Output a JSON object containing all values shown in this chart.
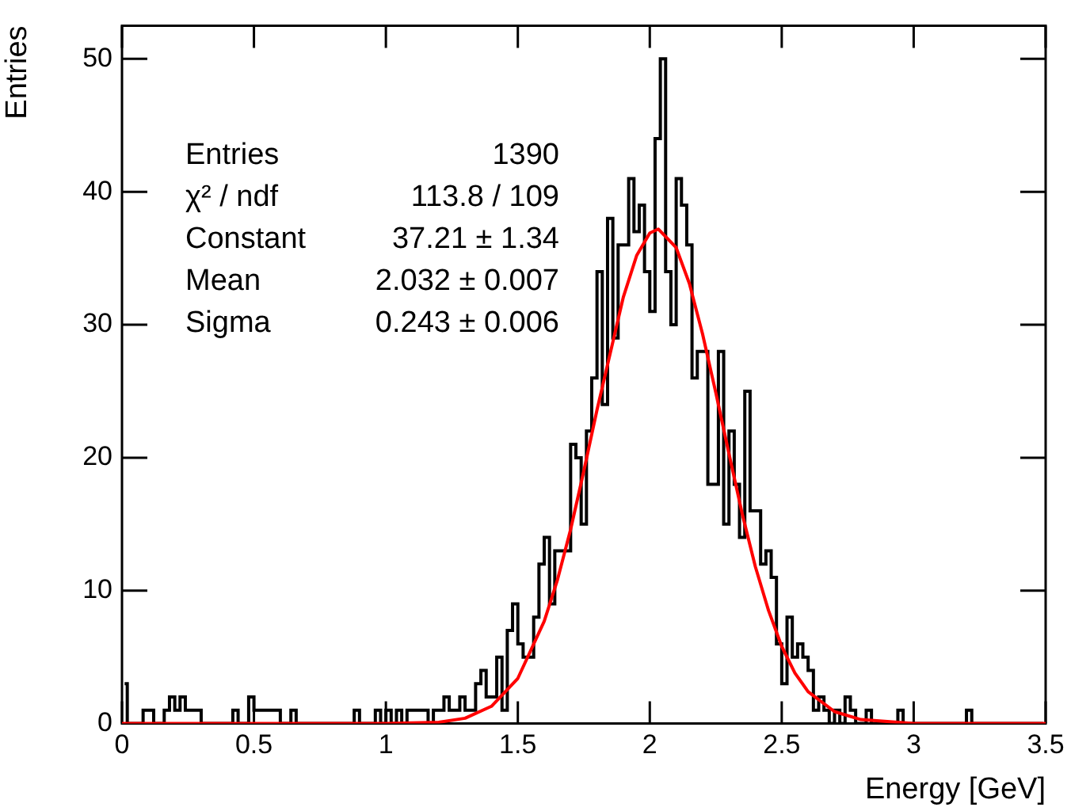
{
  "chart_data": {
    "type": "histogram",
    "xlabel": "Energy [GeV]",
    "ylabel": "Entries",
    "xlim": [
      0,
      3.5
    ],
    "xticks": [
      0,
      0.5,
      1,
      1.5,
      2,
      2.5,
      3,
      3.5
    ],
    "ylim": [
      0,
      52.5
    ],
    "yticks": [
      0,
      10,
      20,
      30,
      40,
      50
    ],
    "grid": false,
    "legend": false,
    "annotations": [
      "Entries",
      "1390",
      "χ² / ndf",
      "113.8 / 109",
      "Constant",
      "37.21 ± 1.34",
      "Mean",
      "2.032 ± 0.007",
      "Sigma",
      "0.243 ± 0.006"
    ],
    "series": [
      {
        "type": "histogram",
        "color": "#000000",
        "bins": [
          0,
          0.02,
          0.04,
          0.06,
          0.08,
          0.1,
          0.12,
          0.14,
          0.16,
          0.18,
          0.2,
          0.22,
          0.24,
          0.26,
          0.28,
          0.3,
          0.32,
          0.34,
          0.36,
          0.38,
          0.4,
          0.42,
          0.44,
          0.46,
          0.48,
          0.5,
          0.52,
          0.54,
          0.56,
          0.58,
          0.6,
          0.62,
          0.64,
          0.66,
          0.68,
          0.7,
          0.72,
          0.74,
          0.76,
          0.78,
          0.8,
          0.82,
          0.84,
          0.86,
          0.88,
          0.9,
          0.92,
          0.94,
          0.96,
          0.98,
          1,
          1.02,
          1.04,
          1.06,
          1.08,
          1.1,
          1.12,
          1.14,
          1.16,
          1.18,
          1.2,
          1.22,
          1.24,
          1.26,
          1.28,
          1.3,
          1.32,
          1.34,
          1.36,
          1.38,
          1.4,
          1.42,
          1.44,
          1.46,
          1.48,
          1.5,
          1.52,
          1.54,
          1.56,
          1.58,
          1.6,
          1.62,
          1.64,
          1.66,
          1.68,
          1.7,
          1.72,
          1.74,
          1.76,
          1.78,
          1.8,
          1.82,
          1.84,
          1.86,
          1.88,
          1.9,
          1.92,
          1.94,
          1.96,
          1.98,
          2,
          2.02,
          2.04,
          2.06,
          2.08,
          2.1,
          2.12,
          2.14,
          2.16,
          2.18,
          2.2,
          2.22,
          2.24,
          2.26,
          2.28,
          2.3,
          2.32,
          2.34,
          2.36,
          2.38,
          2.4,
          2.42,
          2.44,
          2.46,
          2.48,
          2.5,
          2.52,
          2.54,
          2.56,
          2.58,
          2.6,
          2.62,
          2.64,
          2.66,
          2.68,
          2.7,
          2.72,
          2.74,
          2.76,
          2.78,
          2.8,
          2.82,
          2.84,
          2.86,
          2.88,
          2.9,
          2.92,
          2.94,
          2.96,
          2.98,
          3,
          3.02,
          3.04,
          3.06,
          3.08,
          3.1,
          3.12,
          3.14,
          3.16,
          3.18,
          3.2,
          3.22,
          3.24,
          3.26,
          3.28,
          3.3,
          3.32,
          3.34,
          3.36,
          3.38,
          3.4,
          3.42,
          3.44,
          3.46,
          3.48,
          3.5
        ],
        "values": [
          3,
          0,
          0,
          0,
          1,
          1,
          0,
          0,
          1,
          2,
          1,
          2,
          1,
          1,
          1,
          0,
          0,
          0,
          0,
          0,
          0,
          1,
          0,
          0,
          2,
          1,
          1,
          1,
          1,
          1,
          0,
          0,
          1,
          0,
          0,
          0,
          0,
          0,
          0,
          0,
          0,
          0,
          0,
          0,
          1,
          0,
          0,
          0,
          1,
          0,
          1,
          0,
          1,
          0,
          1,
          1,
          1,
          1,
          0,
          1,
          1,
          2,
          1,
          1,
          2,
          1,
          1,
          3,
          4,
          2,
          2,
          5,
          1,
          7,
          9,
          6,
          5,
          5,
          8,
          12,
          14,
          9,
          13,
          13,
          13,
          21,
          20,
          15,
          22,
          26,
          34,
          24,
          38,
          29,
          36,
          36,
          41,
          37,
          39,
          34,
          31,
          44,
          50,
          34,
          30,
          41,
          39,
          36,
          26,
          28,
          28,
          18,
          18,
          28,
          15,
          22,
          18,
          14,
          25,
          16,
          16,
          12,
          13,
          11,
          6,
          3,
          8,
          5,
          6,
          5,
          4,
          1,
          2,
          1,
          0,
          1,
          0,
          2,
          1,
          0,
          0,
          1,
          0,
          0,
          0,
          0,
          0,
          1,
          0,
          0,
          0,
          0,
          0,
          0,
          0,
          0,
          0,
          0,
          0,
          0,
          1,
          0,
          0,
          0,
          0,
          0,
          0,
          0,
          0,
          0,
          0,
          0,
          0,
          0,
          0
        ]
      },
      {
        "type": "line",
        "color": "#ff0000",
        "x": [
          0,
          0.5,
          1,
          1.2,
          1.3,
          1.4,
          1.5,
          1.6,
          1.65,
          1.7,
          1.75,
          1.8,
          1.9,
          1.95,
          2,
          2.032,
          2.1,
          2.15,
          2.2,
          2.25,
          2.3,
          2.35,
          2.4,
          2.45,
          2.5,
          2.55,
          2.6,
          2.7,
          2.8,
          3,
          3.5
        ],
        "values": [
          0,
          0,
          0,
          0.1,
          0.4,
          1.3,
          3.4,
          7.7,
          10.8,
          14.6,
          19,
          23.6,
          32.1,
          35.2,
          36.9,
          37.2,
          35.8,
          33.1,
          29.3,
          24.9,
          20.3,
          15.8,
          11.8,
          8.5,
          5.8,
          3.8,
          2.4,
          0.9,
          0.3,
          0,
          0
        ]
      }
    ]
  }
}
